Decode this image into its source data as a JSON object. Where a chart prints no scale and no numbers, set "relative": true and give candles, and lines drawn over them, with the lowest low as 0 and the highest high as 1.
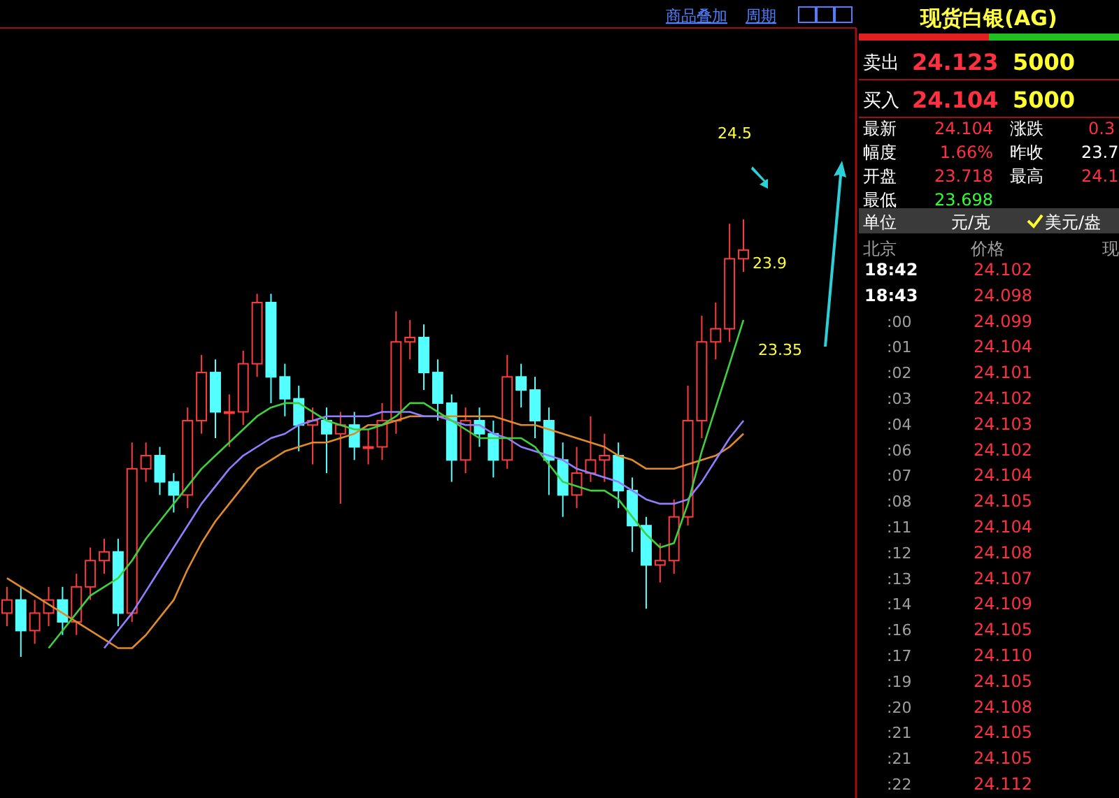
{
  "chart_data": [
    {
      "type": "candlestick",
      "relative": true,
      "categories": [
        null,
        null,
        null,
        null,
        null,
        null,
        null,
        null,
        null,
        null,
        null,
        null,
        null,
        null,
        null,
        null,
        null,
        null,
        null,
        null,
        null,
        null,
        null,
        null,
        null,
        null,
        null,
        null,
        null,
        null,
        null,
        null,
        null,
        null,
        null,
        null,
        null,
        null,
        null,
        null,
        null,
        null,
        null,
        null,
        null,
        null,
        null,
        null,
        null,
        null,
        null,
        null,
        null,
        null
      ],
      "ohlc": [
        [
          0.1,
          0.16,
          0.07,
          0.13
        ],
        [
          0.13,
          0.16,
          0,
          0.06
        ],
        [
          0.06,
          0.13,
          0.03,
          0.1
        ],
        [
          0.1,
          0.16,
          0.07,
          0.13
        ],
        [
          0.13,
          0.16,
          0.05,
          0.08
        ],
        [
          0.08,
          0.19,
          0.05,
          0.16
        ],
        [
          0.16,
          0.25,
          0.13,
          0.22
        ],
        [
          0.22,
          0.27,
          0.19,
          0.24
        ],
        [
          0.24,
          0.27,
          0.07,
          0.1
        ],
        [
          0.1,
          0.49,
          0.08,
          0.43
        ],
        [
          0.43,
          0.49,
          0.4,
          0.46
        ],
        [
          0.46,
          0.48,
          0.37,
          0.4
        ],
        [
          0.4,
          0.42,
          0.33,
          0.37
        ],
        [
          0.37,
          0.57,
          0.34,
          0.54
        ],
        [
          0.54,
          0.69,
          0.51,
          0.65
        ],
        [
          0.65,
          0.68,
          0.5,
          0.56
        ],
        [
          0.56,
          0.6,
          0.48,
          0.56
        ],
        [
          0.56,
          0.7,
          0.53,
          0.67
        ],
        [
          0.67,
          0.83,
          0.64,
          0.81
        ],
        [
          0.81,
          0.83,
          0.58,
          0.64
        ],
        [
          0.64,
          0.67,
          0.55,
          0.59
        ],
        [
          0.59,
          0.62,
          0.47,
          0.53
        ],
        [
          0.53,
          0.57,
          0.44,
          0.54
        ],
        [
          0.54,
          0.57,
          0.42,
          0.51
        ],
        [
          0.51,
          0.56,
          0.35,
          0.53
        ],
        [
          0.53,
          0.56,
          0.45,
          0.48
        ],
        [
          0.48,
          0.52,
          0.44,
          0.48
        ],
        [
          0.48,
          0.58,
          0.45,
          0.54
        ],
        [
          0.54,
          0.79,
          0.51,
          0.72
        ],
        [
          0.72,
          0.77,
          0.68,
          0.73
        ],
        [
          0.73,
          0.76,
          0.61,
          0.65
        ],
        [
          0.65,
          0.68,
          0.54,
          0.58
        ],
        [
          0.58,
          0.6,
          0.4,
          0.45
        ],
        [
          0.45,
          0.57,
          0.42,
          0.54
        ],
        [
          0.54,
          0.57,
          0.48,
          0.51
        ],
        [
          0.51,
          0.54,
          0.41,
          0.45
        ],
        [
          0.45,
          0.69,
          0.43,
          0.64
        ],
        [
          0.64,
          0.67,
          0.57,
          0.61
        ],
        [
          0.61,
          0.64,
          0.5,
          0.54
        ],
        [
          0.54,
          0.57,
          0.37,
          0.45
        ],
        [
          0.45,
          0.49,
          0.32,
          0.37
        ],
        [
          0.37,
          0.48,
          0.34,
          0.42
        ],
        [
          0.42,
          0.55,
          0.4,
          0.45
        ],
        [
          0.45,
          0.51,
          0.4,
          0.46
        ],
        [
          0.46,
          0.49,
          0.34,
          0.38
        ],
        [
          0.38,
          0.41,
          0.24,
          0.3
        ],
        [
          0.3,
          0.32,
          0.11,
          0.21
        ],
        [
          0.21,
          0.26,
          0.17,
          0.22
        ],
        [
          0.22,
          0.36,
          0.19,
          0.32
        ],
        [
          0.32,
          0.62,
          0.3,
          0.54
        ],
        [
          0.54,
          0.78,
          0.5,
          0.72
        ],
        [
          0.72,
          0.81,
          0.68,
          0.75
        ],
        [
          0.75,
          0.99,
          0.72,
          0.91
        ],
        [
          0.91,
          1,
          0.88,
          0.93
        ]
      ],
      "series": [
        {
          "type": "line",
          "color": "#e08a2c",
          "values": [
            0.18,
            0.16,
            0.14,
            0.12,
            0.1,
            0.08,
            0.06,
            0.04,
            0.02,
            0.02,
            0.05,
            0.09,
            0.13,
            0.2,
            0.26,
            0.31,
            0.35,
            0.39,
            0.43,
            0.45,
            0.47,
            0.48,
            0.49,
            0.49,
            0.5,
            0.51,
            0.53,
            0.53,
            0.54,
            0.55,
            0.55,
            0.55,
            0.55,
            0.55,
            0.55,
            0.55,
            0.54,
            0.53,
            0.53,
            0.52,
            0.51,
            0.5,
            0.49,
            0.48,
            0.46,
            0.45,
            0.43,
            0.43,
            0.43,
            0.44,
            0.45,
            0.46,
            0.48,
            0.51
          ]
        },
        {
          "type": "line",
          "color": "#8f7fff",
          "values": [
            null,
            null,
            null,
            null,
            null,
            null,
            null,
            0.02,
            0.06,
            0.1,
            0.15,
            0.2,
            0.25,
            0.3,
            0.35,
            0.39,
            0.43,
            0.46,
            0.48,
            0.5,
            0.51,
            0.53,
            0.54,
            0.55,
            0.55,
            0.55,
            0.55,
            0.56,
            0.56,
            0.56,
            0.55,
            0.55,
            0.54,
            0.53,
            0.53,
            0.51,
            0.5,
            0.48,
            0.47,
            0.46,
            0.45,
            0.43,
            0.42,
            0.41,
            0.4,
            0.38,
            0.36,
            0.35,
            0.35,
            0.36,
            0.4,
            0.45,
            0.5,
            0.54
          ]
        },
        {
          "type": "line",
          "color": "#3fcf3f",
          "values": [
            null,
            null,
            null,
            0.02,
            0.06,
            0.1,
            0.14,
            0.16,
            0.18,
            0.22,
            0.27,
            0.31,
            0.35,
            0.39,
            0.43,
            0.46,
            0.49,
            0.52,
            0.55,
            0.57,
            0.58,
            0.58,
            0.56,
            0.54,
            0.53,
            0.52,
            0.52,
            0.53,
            0.55,
            0.58,
            0.58,
            0.56,
            0.54,
            0.52,
            0.5,
            0.5,
            0.5,
            0.5,
            0.48,
            0.44,
            0.4,
            0.39,
            0.38,
            0.38,
            0.36,
            0.32,
            0.28,
            0.25,
            0.26,
            0.35,
            0.47,
            0.57,
            0.67,
            0.77
          ]
        }
      ],
      "annotations": [
        "24.5",
        "23.9",
        "23.35",
        "商品叠加",
        "周期"
      ]
    },
    {
      "type": "other",
      "title": "现货白银(AG)",
      "annotations": [
        "卖出",
        "24.123",
        "5000",
        "买入",
        "24.104",
        "5000",
        "最新",
        "24.104",
        "涨跌",
        "0.3",
        "幅度",
        "1.66%",
        "昨收",
        "23.7",
        "开盘",
        "23.718",
        "最高",
        "24.1",
        "最低",
        "23.698",
        "单位",
        "元/克",
        "美元/盎",
        "北京",
        "价格",
        "现",
        "18:42",
        "24.102",
        "18:43",
        "24.098",
        ":00",
        "24.099",
        ":01",
        "24.104",
        ":02",
        "24.101",
        ":03",
        "24.102",
        ":04",
        "24.103",
        ":06",
        "24.102",
        ":07",
        "24.104",
        ":08",
        "24.105",
        ":11",
        "24.104",
        ":12",
        "24.108",
        ":13",
        "24.107",
        ":14",
        "24.109",
        ":16",
        "24.105",
        ":17",
        "24.110",
        ":19",
        "24.105",
        ":20",
        "24.108",
        ":21",
        "24.105",
        ":21",
        "24.105",
        ":22",
        "24.112"
      ]
    }
  ]
}
